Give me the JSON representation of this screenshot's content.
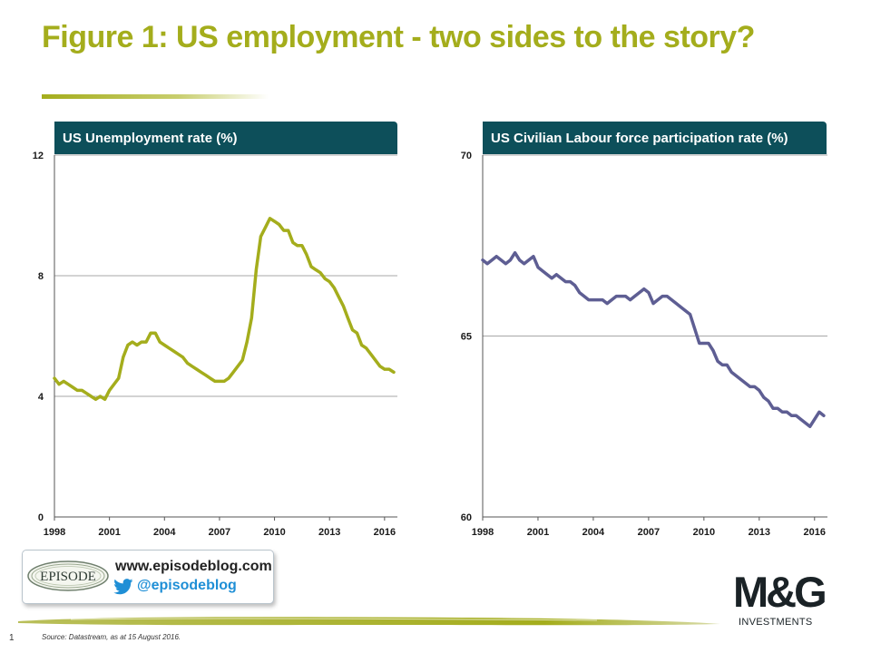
{
  "page": {
    "title": "Figure 1: US employment - two sides to the story?",
    "page_number": "1",
    "source": "Source: Datastream, as at 15 August 2016.",
    "accent_color": "#a4ad1c",
    "header_color": "#0d4f5a"
  },
  "blog": {
    "logo_text": "EPISODE",
    "url": "www.episodeblog.com",
    "handle": "@episodeblog",
    "twitter_icon": "twitter-bird-icon"
  },
  "brand": {
    "logo_text": "M&G",
    "subtitle": "INVESTMENTS"
  },
  "chart_data": [
    {
      "type": "line",
      "title": "US Unemployment rate (%)",
      "color": "#a4ad1c",
      "x_ticks": [
        1998,
        2001,
        2004,
        2007,
        2010,
        2013,
        2016
      ],
      "y_ticks": [
        0,
        4,
        8,
        12
      ],
      "xlim": [
        1998,
        2016.7
      ],
      "ylim": [
        0,
        12
      ],
      "grid": "horizontal",
      "series": [
        {
          "x": [
            1998.0,
            1998.25,
            1998.5,
            1998.75,
            1999.0,
            1999.25,
            1999.5,
            1999.75,
            2000.0,
            2000.25,
            2000.5,
            2000.75,
            2001.0,
            2001.25,
            2001.5,
            2001.75,
            2002.0,
            2002.25,
            2002.5,
            2002.75,
            2003.0,
            2003.25,
            2003.5,
            2003.75,
            2004.0,
            2004.25,
            2004.5,
            2004.75,
            2005.0,
            2005.25,
            2005.5,
            2005.75,
            2006.0,
            2006.25,
            2006.5,
            2006.75,
            2007.0,
            2007.25,
            2007.5,
            2007.75,
            2008.0,
            2008.25,
            2008.5,
            2008.75,
            2009.0,
            2009.25,
            2009.5,
            2009.75,
            2010.0,
            2010.25,
            2010.5,
            2010.75,
            2011.0,
            2011.25,
            2011.5,
            2011.75,
            2012.0,
            2012.25,
            2012.5,
            2012.75,
            2013.0,
            2013.25,
            2013.5,
            2013.75,
            2014.0,
            2014.25,
            2014.5,
            2014.75,
            2015.0,
            2015.25,
            2015.5,
            2015.75,
            2016.0,
            2016.25,
            2016.5
          ],
          "values": [
            4.6,
            4.4,
            4.5,
            4.4,
            4.3,
            4.2,
            4.2,
            4.1,
            4.0,
            3.9,
            4.0,
            3.9,
            4.2,
            4.4,
            4.6,
            5.3,
            5.7,
            5.8,
            5.7,
            5.8,
            5.8,
            6.1,
            6.1,
            5.8,
            5.7,
            5.6,
            5.5,
            5.4,
            5.3,
            5.1,
            5.0,
            4.9,
            4.8,
            4.7,
            4.6,
            4.5,
            4.5,
            4.5,
            4.6,
            4.8,
            5.0,
            5.2,
            5.8,
            6.6,
            8.2,
            9.3,
            9.6,
            9.9,
            9.8,
            9.7,
            9.5,
            9.5,
            9.1,
            9.0,
            9.0,
            8.7,
            8.3,
            8.2,
            8.1,
            7.9,
            7.8,
            7.6,
            7.3,
            7.0,
            6.6,
            6.2,
            6.1,
            5.7,
            5.6,
            5.4,
            5.2,
            5.0,
            4.9,
            4.9,
            4.8
          ]
        }
      ]
    },
    {
      "type": "line",
      "title": "US Civilian Labour force participation rate (%)",
      "color": "#5e5e93",
      "x_ticks": [
        1998,
        2001,
        2004,
        2007,
        2010,
        2013,
        2016
      ],
      "y_ticks": [
        60,
        65,
        70
      ],
      "xlim": [
        1998,
        2016.7
      ],
      "ylim": [
        60,
        70
      ],
      "grid": "horizontal",
      "series": [
        {
          "x": [
            1998.0,
            1998.25,
            1998.5,
            1998.75,
            1999.0,
            1999.25,
            1999.5,
            1999.75,
            2000.0,
            2000.25,
            2000.5,
            2000.75,
            2001.0,
            2001.25,
            2001.5,
            2001.75,
            2002.0,
            2002.25,
            2002.5,
            2002.75,
            2003.0,
            2003.25,
            2003.5,
            2003.75,
            2004.0,
            2004.25,
            2004.5,
            2004.75,
            2005.0,
            2005.25,
            2005.5,
            2005.75,
            2006.0,
            2006.25,
            2006.5,
            2006.75,
            2007.0,
            2007.25,
            2007.5,
            2007.75,
            2008.0,
            2008.25,
            2008.5,
            2008.75,
            2009.0,
            2009.25,
            2009.5,
            2009.75,
            2010.0,
            2010.25,
            2010.5,
            2010.75,
            2011.0,
            2011.25,
            2011.5,
            2011.75,
            2012.0,
            2012.25,
            2012.5,
            2012.75,
            2013.0,
            2013.25,
            2013.5,
            2013.75,
            2014.0,
            2014.25,
            2014.5,
            2014.75,
            2015.0,
            2015.25,
            2015.5,
            2015.75,
            2016.0,
            2016.25,
            2016.5
          ],
          "values": [
            67.1,
            67.0,
            67.1,
            67.2,
            67.1,
            67.0,
            67.1,
            67.3,
            67.1,
            67.0,
            67.1,
            67.2,
            66.9,
            66.8,
            66.7,
            66.6,
            66.7,
            66.6,
            66.5,
            66.5,
            66.4,
            66.2,
            66.1,
            66.0,
            66.0,
            66.0,
            66.0,
            65.9,
            66.0,
            66.1,
            66.1,
            66.1,
            66.0,
            66.1,
            66.2,
            66.3,
            66.2,
            65.9,
            66.0,
            66.1,
            66.1,
            66.0,
            65.9,
            65.8,
            65.7,
            65.6,
            65.2,
            64.8,
            64.8,
            64.8,
            64.6,
            64.3,
            64.2,
            64.2,
            64.0,
            63.9,
            63.8,
            63.7,
            63.6,
            63.6,
            63.5,
            63.3,
            63.2,
            63.0,
            63.0,
            62.9,
            62.9,
            62.8,
            62.8,
            62.7,
            62.6,
            62.5,
            62.7,
            62.9,
            62.8
          ]
        }
      ]
    }
  ]
}
